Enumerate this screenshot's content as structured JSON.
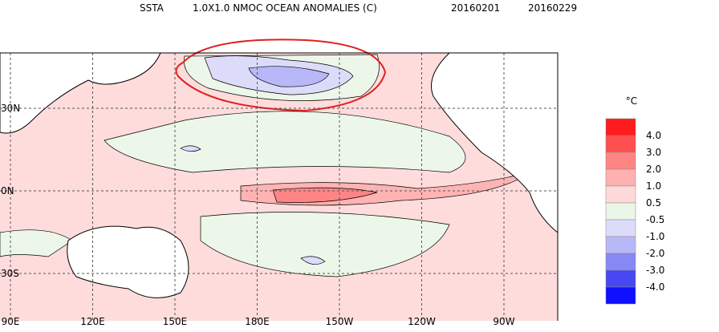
{
  "header": {
    "title": "SSTA",
    "subtitle": "1.0X1.0 NMOC OCEAN ANOMALIES (C)",
    "start_date": "20160201",
    "end_date": "20160229"
  },
  "map": {
    "lat_labels": [
      "30N",
      "0N",
      "30S"
    ],
    "lon_labels": [
      "90E",
      "120E",
      "150E",
      "180E",
      "150W",
      "120W",
      "90W"
    ]
  },
  "legend": {
    "unit": "°C",
    "labels": [
      "4.0",
      "3.0",
      "2.0",
      "1.0",
      "0.5",
      "-0.5",
      "-1.0",
      "-2.0",
      "-3.0",
      "-4.0"
    ],
    "colors": [
      "#ff1c1c",
      "#ff4f4f",
      "#ff8585",
      "#ffb0b0",
      "#ffdada",
      "#eaf6e8",
      "#dcdcfa",
      "#b8b8f8",
      "#8888f4",
      "#4848f2",
      "#1010ff"
    ]
  }
}
